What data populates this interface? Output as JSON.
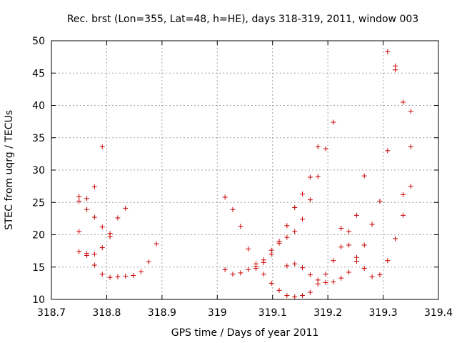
{
  "chart_data": {
    "type": "scatter",
    "title": "Rec. brst (Lon=355, Lat=48, h=HE), days 318-319, 2011, window 003",
    "xlabel": "GPS time / Days of year 2011",
    "ylabel": "STEC from uqrg / TECUs",
    "xlim": [
      318.7,
      319.4
    ],
    "ylim": [
      10,
      50
    ],
    "xticks": [
      318.7,
      318.8,
      318.9,
      319,
      319.1,
      319.2,
      319.3,
      319.4
    ],
    "xtick_labels": [
      "318.7",
      "318.8",
      "318.9",
      "319",
      "319.1",
      "319.2",
      "319.3",
      "319.4"
    ],
    "yticks": [
      10,
      15,
      20,
      25,
      30,
      35,
      40,
      45,
      50
    ],
    "ytick_labels": [
      "10",
      "15",
      "20",
      "25",
      "30",
      "35",
      "40",
      "45",
      "50"
    ],
    "grid": true,
    "marker": "+",
    "color": "#cc0000",
    "series": [
      {
        "name": "STEC",
        "x": [
          318.75,
          318.75,
          318.75,
          318.75,
          318.764,
          318.764,
          318.764,
          318.764,
          318.778,
          318.778,
          318.778,
          318.778,
          318.792,
          318.792,
          318.792,
          318.792,
          318.806,
          318.806,
          318.806,
          318.82,
          318.82,
          318.834,
          318.834,
          318.848,
          318.862,
          318.876,
          318.89,
          319.014,
          319.014,
          319.028,
          319.028,
          319.042,
          319.042,
          319.056,
          319.056,
          319.07,
          319.07,
          319.07,
          319.084,
          319.084,
          319.084,
          319.098,
          319.098,
          319.098,
          319.112,
          319.112,
          319.112,
          319.126,
          319.126,
          319.126,
          319.126,
          319.14,
          319.14,
          319.14,
          319.14,
          319.154,
          319.154,
          319.154,
          319.154,
          319.168,
          319.168,
          319.168,
          319.168,
          319.182,
          319.182,
          319.182,
          319.182,
          319.196,
          319.196,
          319.196,
          319.21,
          319.21,
          319.21,
          319.224,
          319.224,
          319.224,
          319.238,
          319.238,
          319.238,
          319.252,
          319.252,
          319.252,
          319.266,
          319.266,
          319.266,
          319.28,
          319.28,
          319.294,
          319.294,
          319.308,
          319.308,
          319.308,
          319.322,
          319.322,
          319.322,
          319.336,
          319.336,
          319.336,
          319.35,
          319.35,
          319.35
        ],
        "y": [
          25.9,
          25.2,
          20.5,
          17.4,
          25.6,
          23.9,
          17.1,
          16.8,
          27.4,
          22.7,
          17.0,
          15.3,
          33.6,
          21.2,
          18.0,
          13.9,
          20.2,
          19.7,
          13.4,
          22.6,
          13.5,
          24.1,
          13.6,
          13.7,
          14.3,
          15.8,
          18.6,
          25.8,
          14.6,
          23.9,
          13.9,
          21.3,
          14.1,
          17.8,
          14.6,
          15.5,
          15.1,
          14.8,
          16.1,
          15.7,
          13.9,
          17.6,
          17.0,
          12.5,
          19.0,
          18.7,
          11.4,
          21.4,
          19.6,
          15.2,
          10.6,
          24.2,
          20.5,
          15.5,
          10.4,
          26.3,
          22.4,
          14.9,
          10.6,
          28.9,
          25.4,
          13.8,
          11.1,
          33.6,
          29.0,
          13.0,
          12.4,
          33.3,
          13.9,
          12.6,
          37.4,
          16.0,
          12.7,
          21.0,
          18.1,
          13.3,
          20.5,
          18.4,
          14.2,
          23.0,
          16.5,
          15.9,
          29.1,
          18.4,
          14.8,
          21.6,
          13.5,
          25.2,
          13.8,
          48.3,
          33.0,
          16.0,
          46.1,
          45.5,
          19.4,
          40.5,
          26.2,
          23.0,
          39.1,
          33.6,
          27.5
        ]
      }
    ]
  }
}
